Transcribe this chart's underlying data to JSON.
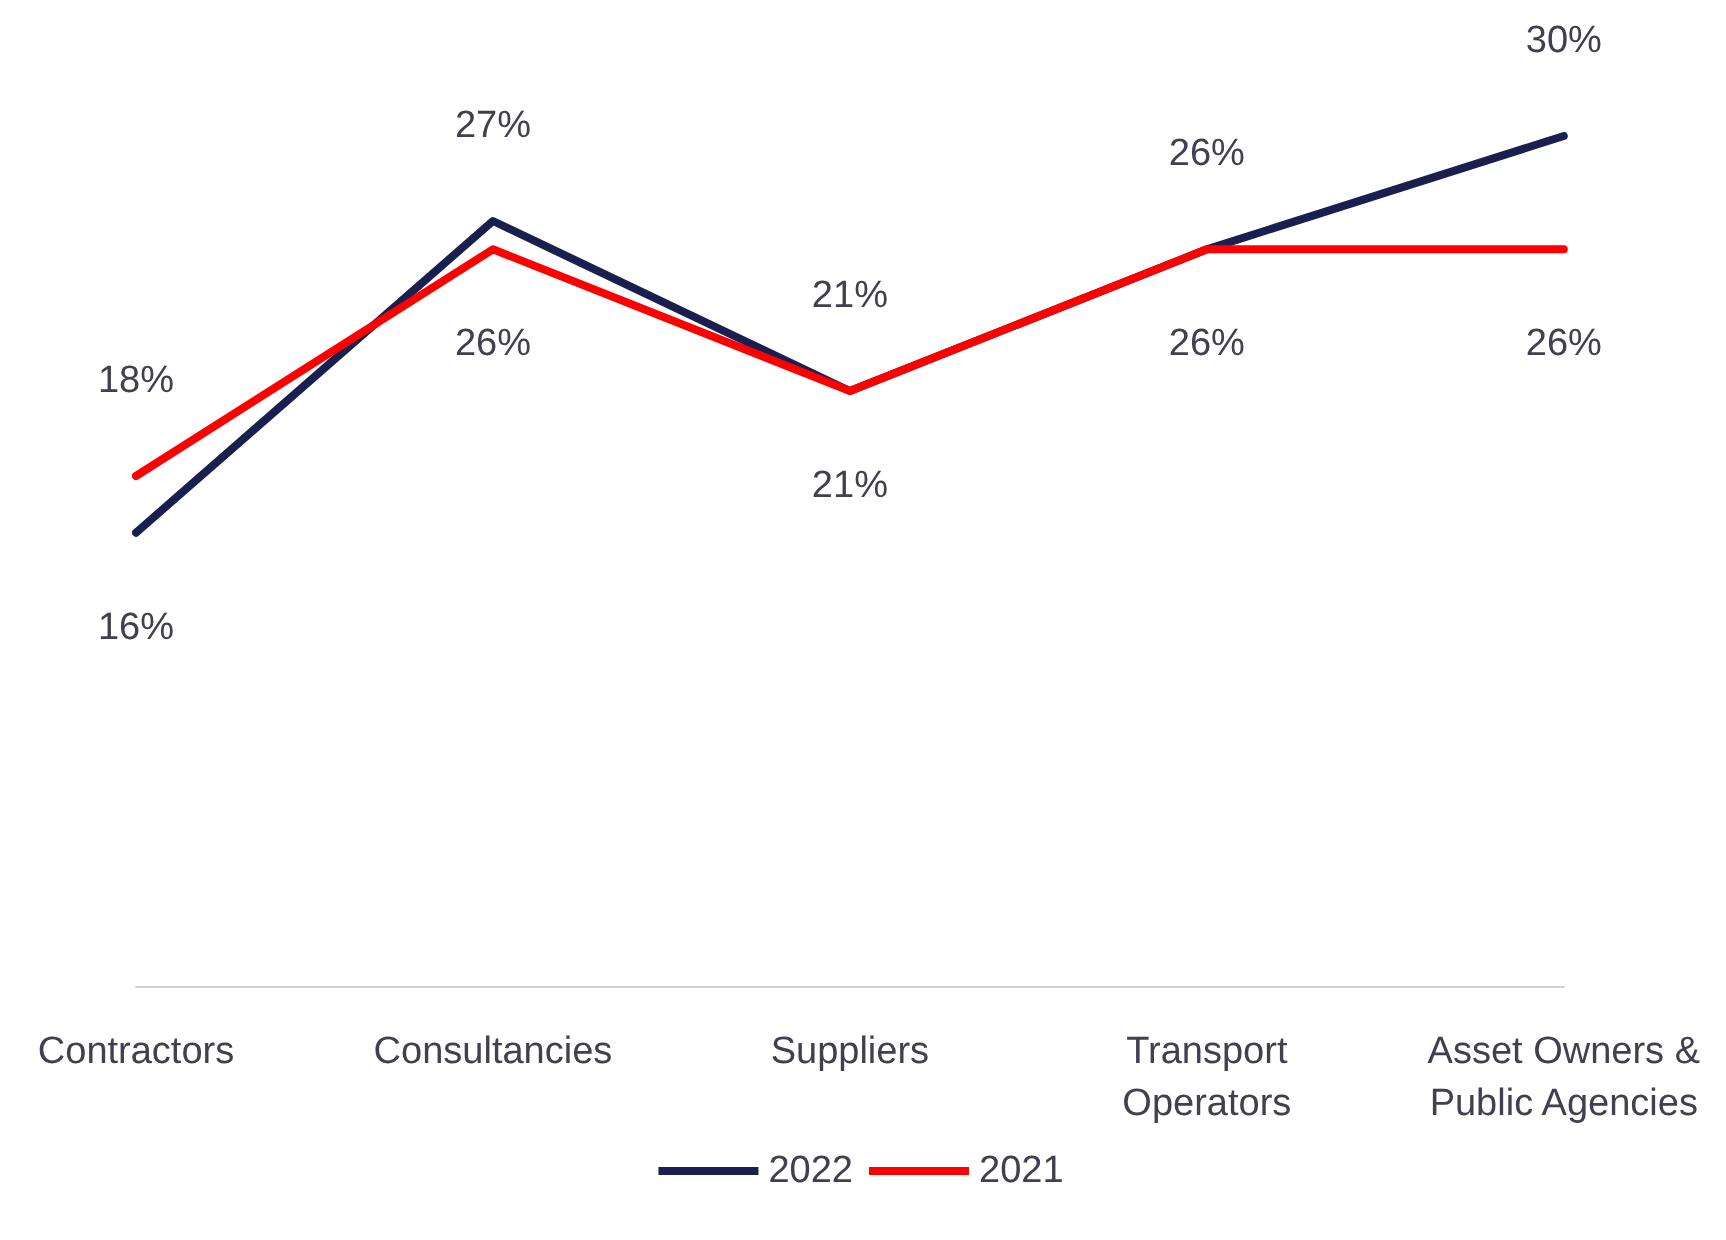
{
  "chart_data": {
    "type": "line",
    "categories": [
      "Contractors",
      "Consultancies",
      "Suppliers",
      "Transport\nOperators",
      "Asset Owners &\nPublic Agencies"
    ],
    "series": [
      {
        "name": "2022",
        "color": "#1b1f4f",
        "values": [
          16,
          27,
          21,
          26,
          30
        ],
        "value_labels": [
          "16%",
          "27%",
          "21%",
          "26%",
          "30%"
        ]
      },
      {
        "name": "2021",
        "color": "#ff0000",
        "values": [
          18,
          26,
          21,
          26,
          26
        ],
        "value_labels": [
          "18%",
          "26%",
          "21%",
          "26%",
          "26%"
        ]
      }
    ],
    "legend": "bottom",
    "grid": false,
    "marker": "none",
    "line_style": "solid"
  }
}
